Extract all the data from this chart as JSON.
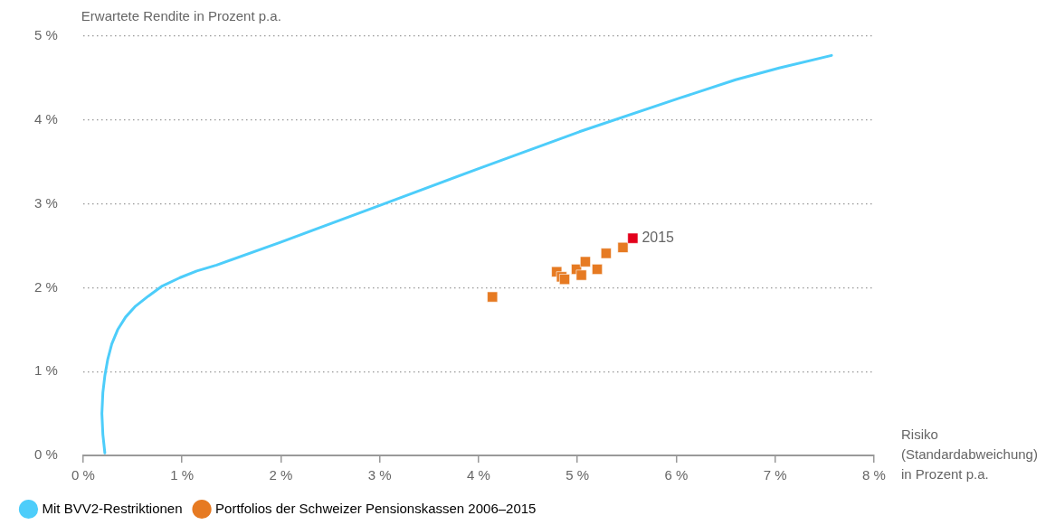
{
  "chart_data": {
    "type": "scatter",
    "ylabel": "Erwartete Rendite in Prozent p.a.",
    "xlabel": "Risiko\n(Standardabweichung)\nin Prozent p.a.",
    "xlim": [
      0,
      8
    ],
    "ylim": [
      0,
      5
    ],
    "xticks": [
      {
        "value": 0,
        "label": "0 %"
      },
      {
        "value": 1,
        "label": "1 %"
      },
      {
        "value": 2,
        "label": "2 %"
      },
      {
        "value": 3,
        "label": "3 %"
      },
      {
        "value": 4,
        "label": "4 %"
      },
      {
        "value": 5,
        "label": "5 %"
      },
      {
        "value": 6,
        "label": "6 %"
      },
      {
        "value": 7,
        "label": "7 %"
      },
      {
        "value": 8,
        "label": "8 %"
      }
    ],
    "yticks": [
      {
        "value": 0,
        "label": "0 %"
      },
      {
        "value": 1,
        "label": "1 %"
      },
      {
        "value": 2,
        "label": "2 %"
      },
      {
        "value": 3,
        "label": "3 %"
      },
      {
        "value": 4,
        "label": "4 %"
      },
      {
        "value": 5,
        "label": "5 %"
      }
    ],
    "grid": "y",
    "legend": "bottom left",
    "marker": "square",
    "series": [
      {
        "name": "Mit BVV2-Restriktionen",
        "type": "line",
        "color": "#4dcdfa",
        "marker": "none",
        "x": [
          0.22,
          0.2,
          0.19,
          0.2,
          0.22,
          0.25,
          0.29,
          0.35,
          0.43,
          0.53,
          0.66,
          0.8,
          0.98,
          1.15,
          1.35,
          1.99,
          3.0,
          4.0,
          5.02,
          6.03,
          6.6,
          7.04,
          7.57
        ],
        "values": [
          0.03,
          0.25,
          0.5,
          0.75,
          0.95,
          1.15,
          1.33,
          1.5,
          1.65,
          1.78,
          1.9,
          2.02,
          2.12,
          2.2,
          2.27,
          2.54,
          2.98,
          3.42,
          3.86,
          4.26,
          4.48,
          4.62,
          4.77
        ]
      },
      {
        "name": "Portfolios der Schweizer Pensionskassen 2006–2015",
        "color": "#e67a22",
        "x": [
          4.14,
          4.79,
          4.84,
          4.87,
          4.99,
          5.04,
          5.08,
          5.2,
          5.29,
          5.46,
          5.56
        ],
        "values": [
          1.89,
          2.19,
          2.13,
          2.1,
          2.22,
          2.15,
          2.31,
          2.22,
          2.41,
          2.48,
          2.59
        ],
        "colors": [
          "#e67a22",
          "#e67a22",
          "#e67a22",
          "#e67a22",
          "#e67a22",
          "#e67a22",
          "#e67a22",
          "#e67a22",
          "#e67a22",
          "#e67a22",
          "#e3001b"
        ]
      }
    ],
    "annotations": [
      {
        "text": "2015",
        "x": 5.56,
        "y": 2.59
      }
    ]
  }
}
